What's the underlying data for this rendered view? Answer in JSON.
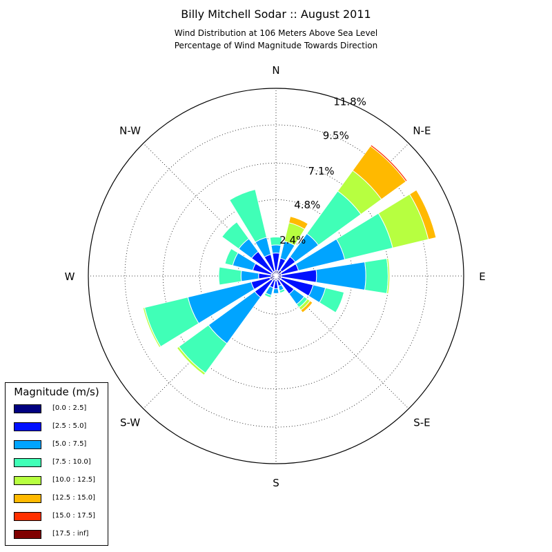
{
  "title": "Billy Mitchell Sodar :: August 2011",
  "subtitle_line1": "Wind Distribution at 106 Meters Above Sea Level",
  "subtitle_line2": "Percentage of Wind Magnitude Towards Direction",
  "legend_title": "Magnitude (m/s)",
  "chart_data": {
    "type": "windrose",
    "directions": [
      "N",
      "N-E",
      "E",
      "S-E",
      "S",
      "S-W",
      "W",
      "N-W"
    ],
    "radial_ticks": [
      "2.4%",
      "4.8%",
      "7.1%",
      "9.5%",
      "11.8%"
    ],
    "radial_tick_values": [
      2.4,
      4.8,
      7.1,
      9.5,
      11.8
    ],
    "rmax": 11.8,
    "sector_directions_deg": [
      0,
      22.5,
      45,
      67.5,
      90,
      112.5,
      135,
      157.5,
      180,
      202.5,
      225,
      247.5,
      270,
      292.5,
      315,
      337.5
    ],
    "bins": [
      {
        "label": "[0.0 : 2.5]",
        "color": "#000080"
      },
      {
        "label": "[2.5 : 5.0]",
        "color": "#0010ff"
      },
      {
        "label": "[5.0 : 7.5]",
        "color": "#00a4ff"
      },
      {
        "label": "[7.5 : 10.0]",
        "color": "#40ffb7"
      },
      {
        "label": "[10.0 : 12.5]",
        "color": "#b7ff40"
      },
      {
        "label": "[12.5 : 15.0]",
        "color": "#ffb900"
      },
      {
        "label": "[15.0 : 17.5]",
        "color": "#ff3000"
      },
      {
        "label": "[17.5 : inf]",
        "color": "#800000"
      }
    ],
    "values": [
      [
        0.35,
        1.1,
        0.5,
        0.5,
        0,
        0,
        0,
        0
      ],
      [
        0.35,
        0.8,
        1.1,
        0,
        1.2,
        0.4,
        0,
        0
      ],
      [
        0.45,
        1.05,
        1.8,
        3.3,
        1.6,
        1.9,
        0.1,
        0
      ],
      [
        0.35,
        1.1,
        3.0,
        3.1,
        2.3,
        0.5,
        0,
        0
      ],
      [
        0.35,
        2.2,
        3.1,
        1.4,
        0.1,
        0,
        0,
        0
      ],
      [
        0.35,
        2.05,
        0.8,
        1.2,
        0,
        0,
        0,
        0
      ],
      [
        0.35,
        1.05,
        0.8,
        0.25,
        0.2,
        0.2,
        0,
        0
      ],
      [
        0.25,
        0.4,
        0.3,
        0.15,
        0,
        0,
        0,
        0
      ],
      [
        0.3,
        0.5,
        0.3,
        0,
        0,
        0,
        0,
        0
      ],
      [
        0.25,
        0.5,
        0.5,
        0.15,
        0,
        0,
        0,
        0
      ],
      [
        0.35,
        1.3,
        3.6,
        2.3,
        0.15,
        0,
        0,
        0
      ],
      [
        0.4,
        1.2,
        4.1,
        2.8,
        0.1,
        0,
        0,
        0
      ],
      [
        0.3,
        0.8,
        1.1,
        1.4,
        0,
        0,
        0,
        0
      ],
      [
        0.3,
        1.2,
        1.3,
        0.5,
        0,
        0,
        0,
        0
      ],
      [
        0.3,
        1.6,
        1.0,
        1.3,
        0,
        0,
        0,
        0
      ],
      [
        0.3,
        1.1,
        1.1,
        3.1,
        0,
        0,
        0,
        0
      ]
    ]
  }
}
